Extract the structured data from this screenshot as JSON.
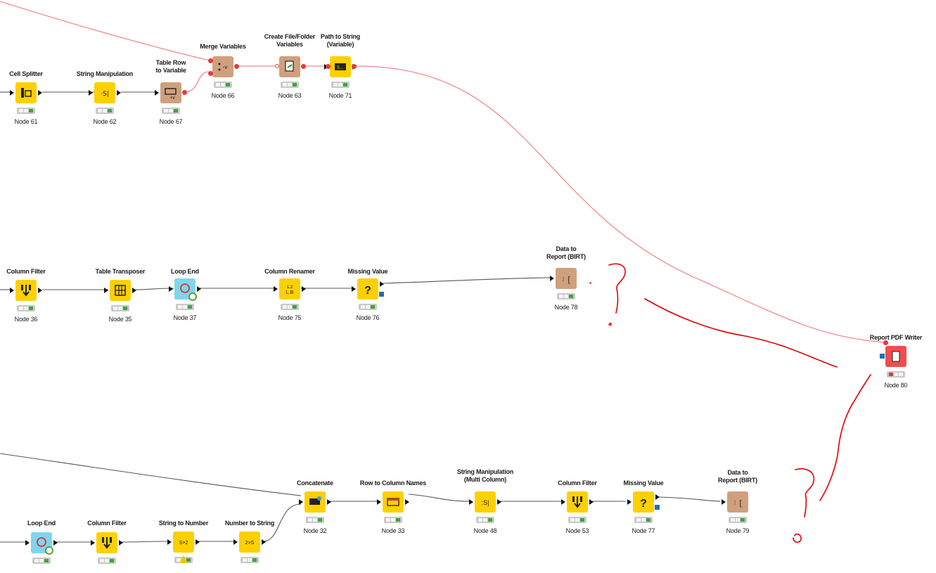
{
  "colors": {
    "manipulator": "#fdd000",
    "flow_control": "#7fd5ee",
    "variable_node": "#cfa07c",
    "report_writer": "#f04d4d",
    "flow_variable_connection": "#f08a8a",
    "data_connection": "#555555",
    "annotation_ink": "#e00000"
  },
  "nodes": [
    {
      "id": "n61",
      "title": "Cell Splitter",
      "label": "Node 61",
      "icon": "cell-splitter-icon"
    },
    {
      "id": "n62",
      "title": "String Manipulation",
      "label": "Node 62",
      "icon": "string-manipulation-icon"
    },
    {
      "id": "n67",
      "title": "Table Row\nto Variable",
      "label": "Node 67",
      "icon": "table-row-to-variable-icon"
    },
    {
      "id": "n66",
      "title": "Merge Variables",
      "label": "Node 66",
      "icon": "merge-variables-icon"
    },
    {
      "id": "n63",
      "title": "Create File/Folder\nVariables",
      "label": "Node 63",
      "icon": "create-file-folder-icon"
    },
    {
      "id": "n71",
      "title": "Path to String\n(Variable)",
      "label": "Node 71",
      "icon": "path-to-string-icon"
    },
    {
      "id": "n36",
      "title": "Column Filter",
      "label": "Node 36",
      "icon": "column-filter-icon"
    },
    {
      "id": "n35",
      "title": "Table Transposer",
      "label": "Node 35",
      "icon": "table-transposer-icon"
    },
    {
      "id": "n37",
      "title": "Loop End",
      "label": "Node 37",
      "icon": "loop-end-icon"
    },
    {
      "id": "n75",
      "title": "Column Renamer",
      "label": "Node 75",
      "icon": "column-renamer-icon"
    },
    {
      "id": "n76",
      "title": "Missing Value",
      "label": "Node 76",
      "icon": "missing-value-icon"
    },
    {
      "id": "n78",
      "title": "Data to\nReport (BIRT)",
      "label": "Node 78",
      "icon": "data-to-report-icon"
    },
    {
      "id": "n80",
      "title": "Report PDF Writer",
      "label": "Node 80",
      "icon": "report-pdf-writer-icon"
    },
    {
      "id": "nle2",
      "title": "Loop End",
      "label": "",
      "icon": "loop-end-icon"
    },
    {
      "id": "ncf2",
      "title": "Column Filter",
      "label": "",
      "icon": "column-filter-icon"
    },
    {
      "id": "n74",
      "title": "String to Number",
      "label": "",
      "icon": "string-to-number-icon"
    },
    {
      "id": "n52",
      "title": "Number to String",
      "label": "",
      "icon": "number-to-string-icon"
    },
    {
      "id": "n32",
      "title": "Concatenate",
      "label": "Node 32",
      "icon": "concatenate-icon"
    },
    {
      "id": "n33",
      "title": "Row to Column Names",
      "label": "Node 33",
      "icon": "row-to-column-names-icon"
    },
    {
      "id": "n48",
      "title": "String Manipulation\n(Multi Column)",
      "label": "Node 48",
      "icon": "string-manipulation-multi-icon"
    },
    {
      "id": "n53",
      "title": "Column Filter",
      "label": "Node 53",
      "icon": "column-filter-icon"
    },
    {
      "id": "n77",
      "title": "Missing Value",
      "label": "Node 77",
      "icon": "missing-value-icon"
    },
    {
      "id": "n79",
      "title": "Data to\nReport (BIRT)",
      "label": "Node 79",
      "icon": "data-to-report-icon"
    }
  ]
}
